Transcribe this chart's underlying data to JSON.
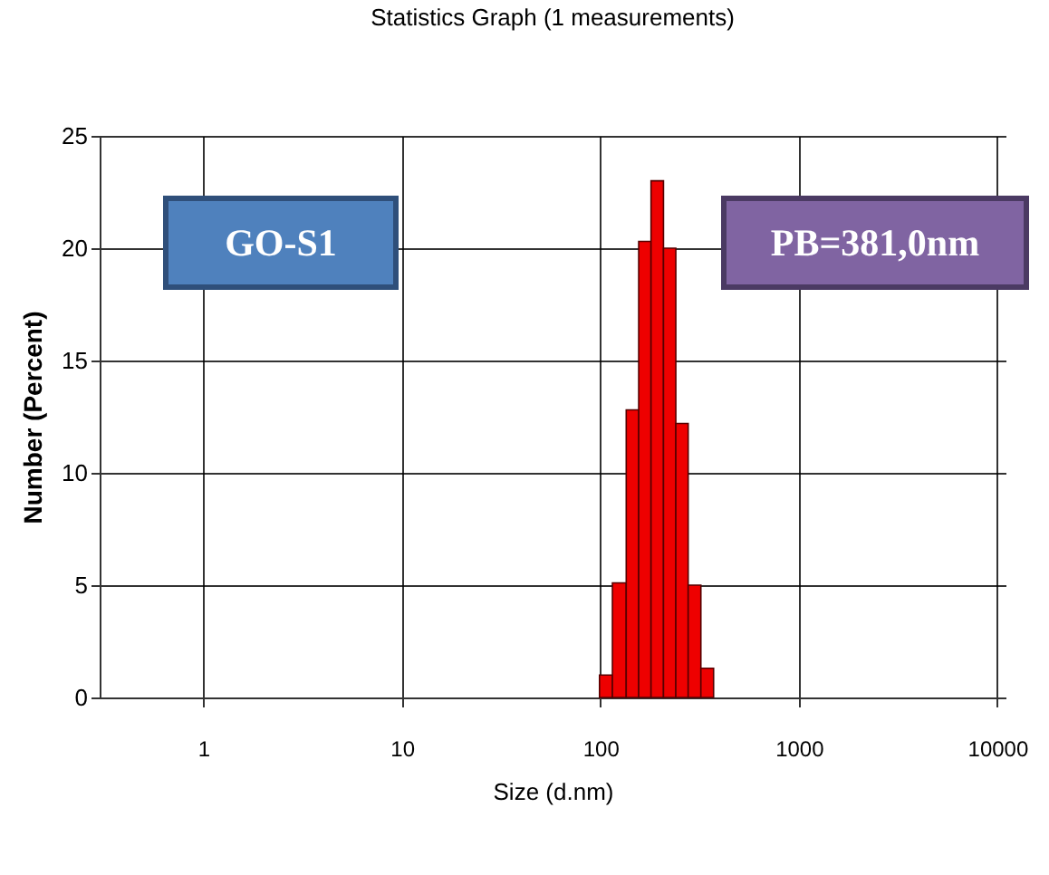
{
  "chart_data": {
    "type": "histogram",
    "title": "Statistics Graph (1 measurements)",
    "xlabel": "Size (d.nm)",
    "ylabel": "Number (Percent)",
    "bins": [
      99,
      115,
      135,
      156,
      180,
      208,
      240,
      277,
      321,
      372
    ],
    "values": [
      1.0,
      5.1,
      12.8,
      20.3,
      23.0,
      20.0,
      12.2,
      5.0,
      1.3
    ],
    "color": "#ee0000",
    "log": "x",
    "xlim": [
      0.3,
      11000
    ],
    "xticks": [
      1,
      10,
      100,
      1000,
      10000
    ],
    "ylim": [
      0,
      25
    ],
    "yticks": [
      0,
      5,
      10,
      15,
      20,
      25
    ],
    "grid": true,
    "annotations": [
      "GO-S1",
      "PB=381,0nm"
    ]
  }
}
